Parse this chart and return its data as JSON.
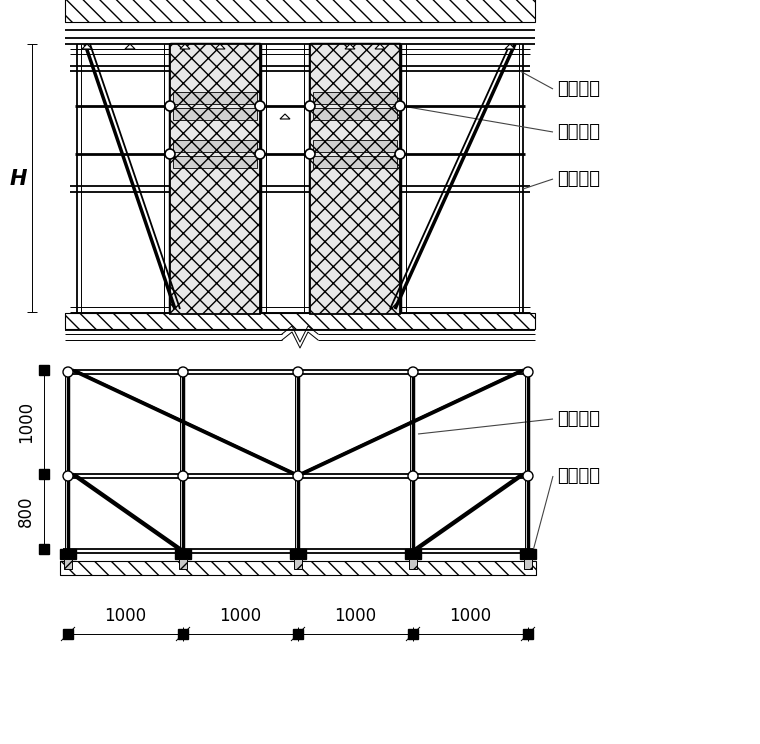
{
  "bg_color": "#ffffff",
  "line_color": "#000000",
  "labels": {
    "H": "H",
    "label1": "框梁斜撑",
    "label2": "对拉丝杆",
    "label3": "加固钒管",
    "label4": "加固斜撑",
    "label5": "支撑垫板",
    "dim_1000": "1000",
    "dim_800": "800",
    "dims": [
      "1000",
      "1000",
      "1000",
      "1000"
    ]
  },
  "font_size_label": 13,
  "font_size_dim": 12
}
